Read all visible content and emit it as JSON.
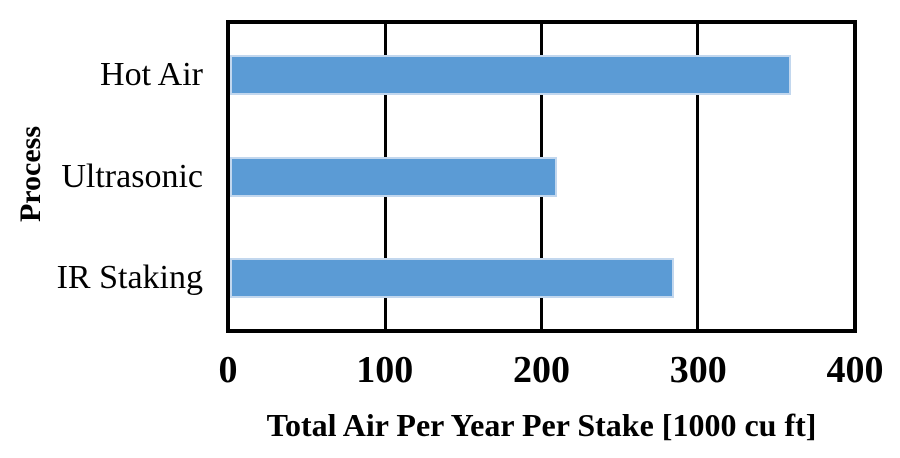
{
  "chart_data": {
    "type": "bar",
    "orientation": "horizontal",
    "categories": [
      "Hot Air",
      "Ultrasonic",
      "IR Staking"
    ],
    "values": [
      360,
      210,
      285
    ],
    "xlabel": "Total Air Per Year Per Stake [1000 cu ft]",
    "ylabel": "Process",
    "xlim": [
      0,
      400
    ],
    "xticks": [
      0,
      100,
      200,
      300,
      400
    ],
    "grid": "vertical lines at interior x ticks",
    "legend": "none",
    "title": "",
    "bar_color": "#5b9bd5",
    "bar_edge_color": "#cddef1",
    "gridline_color": "#000000",
    "border_color": "#000000",
    "text_color": "#000000",
    "background_color": "#ffffff"
  }
}
